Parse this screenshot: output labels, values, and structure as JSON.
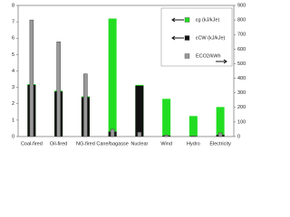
{
  "chart_data": {
    "type": "bar",
    "categories": [
      "Coal-fired",
      "Oil-fired",
      "NG-fired",
      "Cane/bagasse",
      "Nuclear",
      "Wind",
      "Hydro",
      "Electricity"
    ],
    "series": [
      {
        "name": "εg (kJ/kJe)",
        "color": "#22dd22",
        "values": [
          3.2,
          2.8,
          2.45,
          7.2,
          3.15,
          2.3,
          1.25,
          1.8
        ]
      },
      {
        "name": "εCW (kJ/kJe)",
        "color": "#111111",
        "values": [
          3.15,
          2.75,
          2.4,
          0.3,
          3.1,
          0.05,
          0.02,
          0.1
        ]
      },
      {
        "name": "ECO2/kWh",
        "color": "#999999",
        "axis": "y2",
        "values": [
          800,
          650,
          430,
          50,
          30,
          10,
          5,
          25
        ]
      }
    ],
    "ylim": [
      0,
      8
    ],
    "yticks": [
      0,
      1,
      2,
      3,
      4,
      5,
      6,
      7,
      8
    ],
    "y2lim": [
      0,
      900
    ],
    "y2ticks": [
      0,
      100,
      200,
      300,
      400,
      500,
      600,
      700,
      800,
      900
    ],
    "legend": "upper right"
  }
}
